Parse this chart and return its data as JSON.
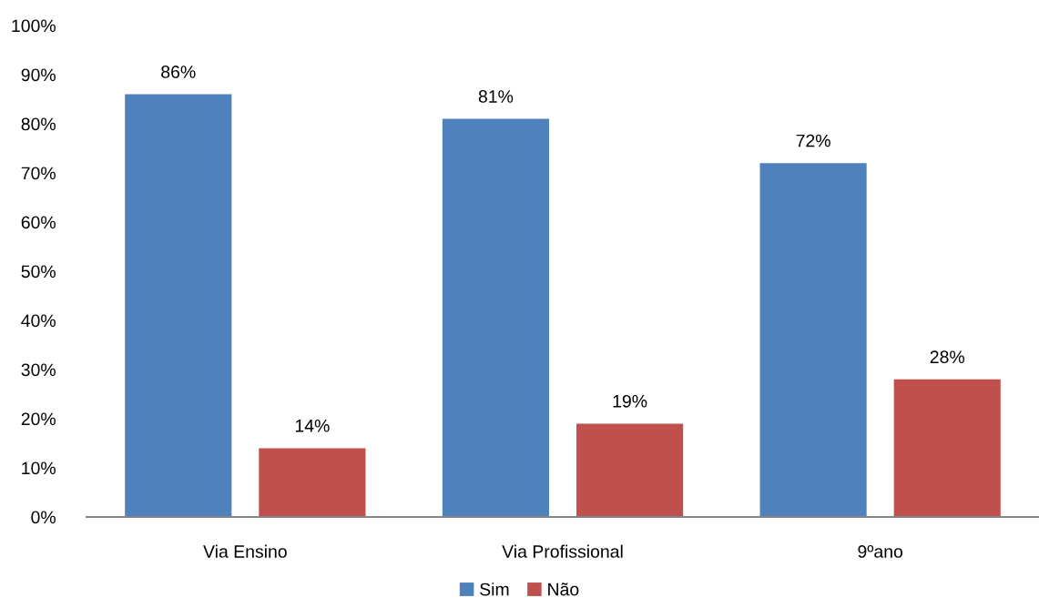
{
  "chart_data": {
    "type": "bar",
    "categories": [
      "Via Ensino",
      "Via Profissional",
      "9ºano"
    ],
    "series": [
      {
        "name": "Sim",
        "color": "#4f81bd",
        "values": [
          86,
          81,
          72
        ],
        "value_labels": [
          "86%",
          "81%",
          "72%"
        ]
      },
      {
        "name": "Não",
        "color": "#c0504d",
        "values": [
          14,
          19,
          28
        ],
        "value_labels": [
          "14%",
          "19%",
          "28%"
        ]
      }
    ],
    "ylim": [
      0,
      100
    ],
    "yticks": [
      {
        "value": 0,
        "label": "0%"
      },
      {
        "value": 10,
        "label": "10%"
      },
      {
        "value": 20,
        "label": "20%"
      },
      {
        "value": 30,
        "label": "30%"
      },
      {
        "value": 40,
        "label": "40%"
      },
      {
        "value": 50,
        "label": "50%"
      },
      {
        "value": 60,
        "label": "60%"
      },
      {
        "value": 70,
        "label": "70%"
      },
      {
        "value": 80,
        "label": "80%"
      },
      {
        "value": 90,
        "label": "90%"
      },
      {
        "value": 100,
        "label": "100%"
      }
    ],
    "grid": false,
    "legend": "bottom"
  }
}
